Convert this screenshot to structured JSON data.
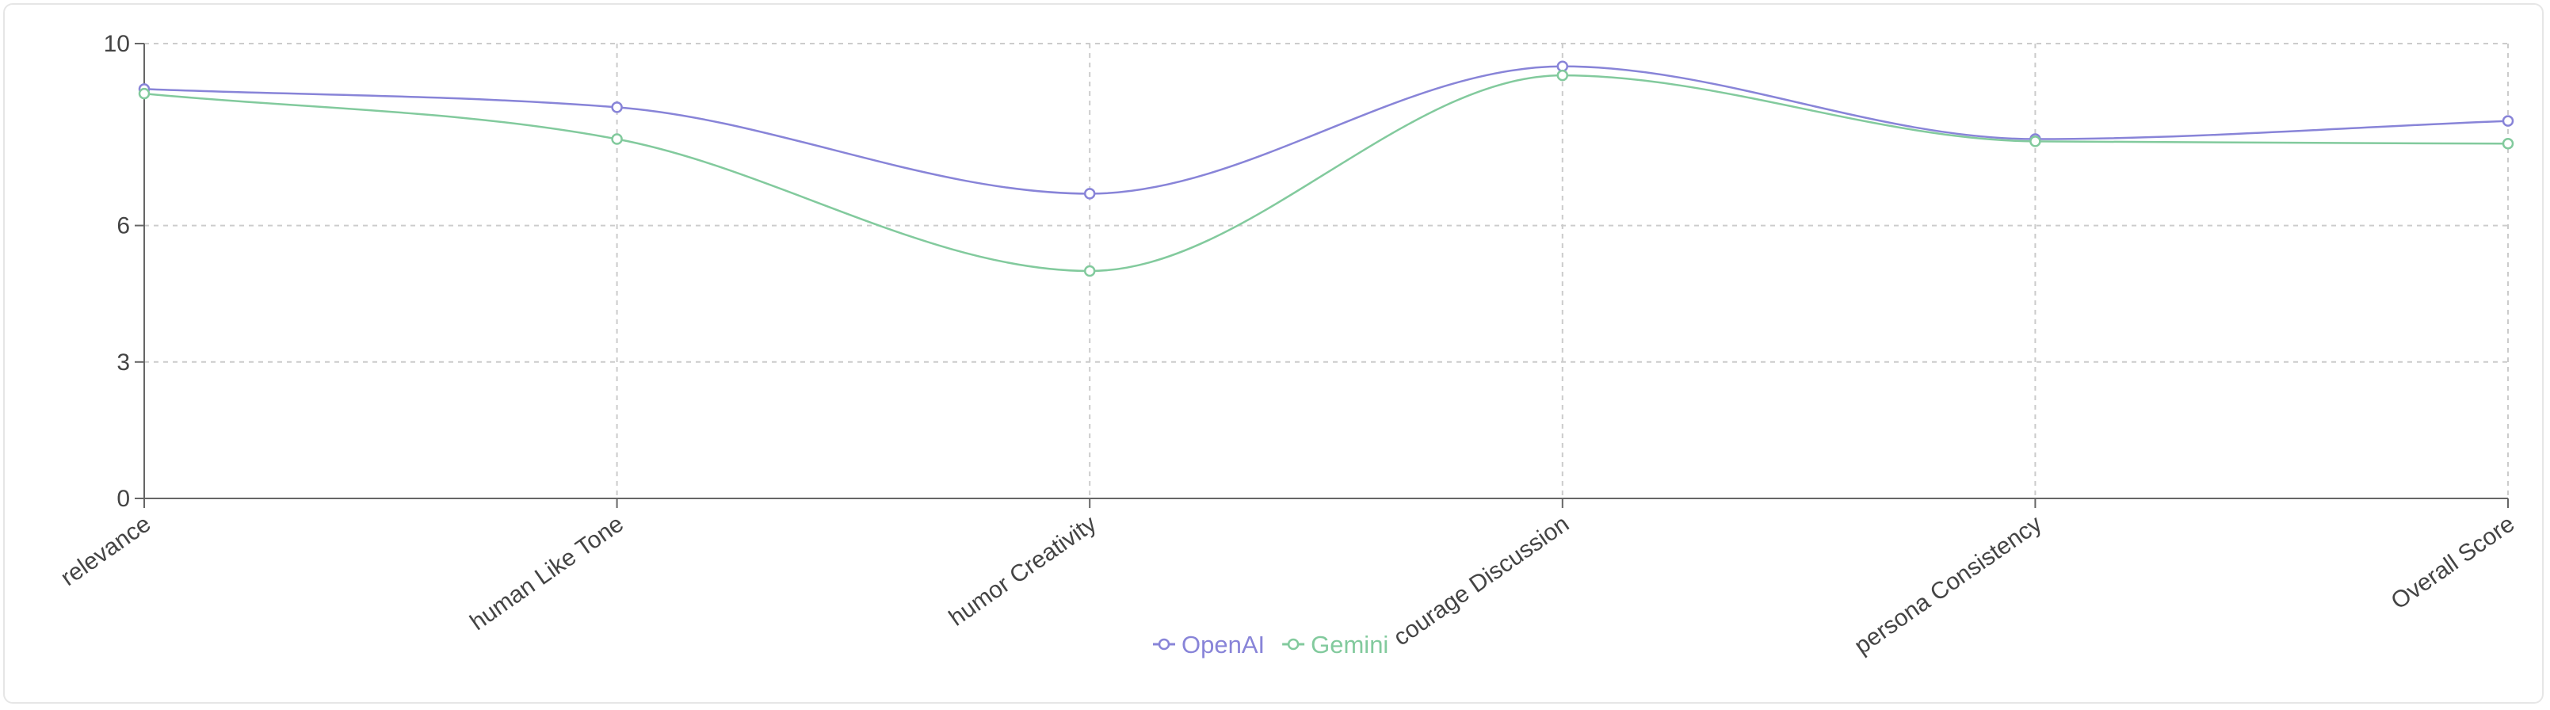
{
  "chart_data": {
    "type": "line",
    "categories": [
      "relevance",
      "human Like Tone",
      "humor Creativity",
      "courage Discussion",
      "persona Consistency",
      "Overall Score"
    ],
    "ylim": [
      0,
      10
    ],
    "yticks": [
      0,
      3,
      6,
      10
    ],
    "grid": true,
    "curve": "smooth",
    "legend_position": "bottom-center",
    "series": [
      {
        "name": "OpenAI",
        "color": "#8884d8",
        "values": [
          9.0,
          8.6,
          6.7,
          9.5,
          7.9,
          8.3
        ]
      },
      {
        "name": "Gemini",
        "color": "#82ca9d",
        "values": [
          8.9,
          7.9,
          5.0,
          9.3,
          7.85,
          7.8
        ]
      }
    ]
  }
}
